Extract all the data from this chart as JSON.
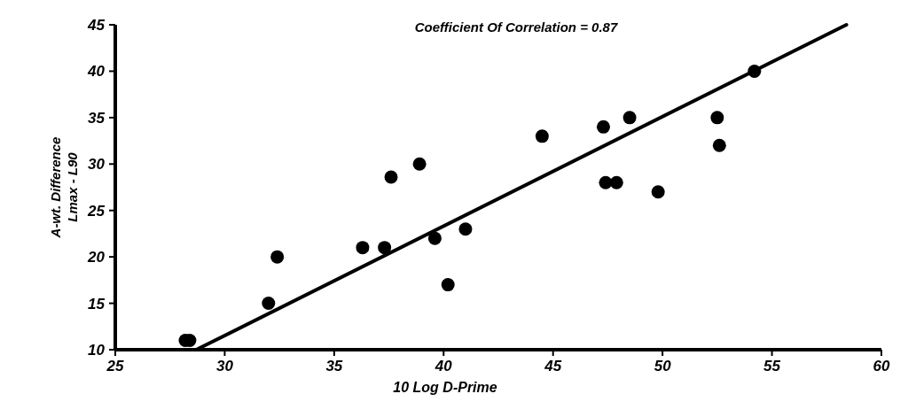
{
  "chart_data": {
    "type": "scatter",
    "xlabel": "10 Log D-Prime",
    "ylabel": "A-wt. Difference\nLmax - L90",
    "annotations": [
      "Coefficient Of Correlation = 0.87"
    ],
    "xlim": [
      25,
      60
    ],
    "ylim": [
      10,
      45
    ],
    "xticks": [
      25,
      30,
      35,
      40,
      45,
      50,
      55,
      60
    ],
    "yticks": [
      10,
      15,
      20,
      25,
      30,
      35,
      40,
      45
    ],
    "grid": false,
    "series": [
      {
        "color": "#000000",
        "marker": "circle",
        "x": [
          28.2,
          28.4,
          32.0,
          32.4,
          36.3,
          37.3,
          37.6,
          38.9,
          39.6,
          40.2,
          41.0,
          44.5,
          47.3,
          47.4,
          47.9,
          48.5,
          49.8,
          52.5,
          52.6,
          54.2
        ],
        "values": [
          11,
          11,
          15,
          20,
          21,
          21,
          28.6,
          30,
          22,
          17,
          23,
          33,
          34,
          28,
          28,
          35,
          27,
          35,
          32,
          40
        ]
      },
      {
        "type": "line",
        "color": "#000000",
        "x": [
          28.7,
          58.4
        ],
        "values": [
          10,
          45
        ],
        "line_style": "solid"
      }
    ]
  }
}
